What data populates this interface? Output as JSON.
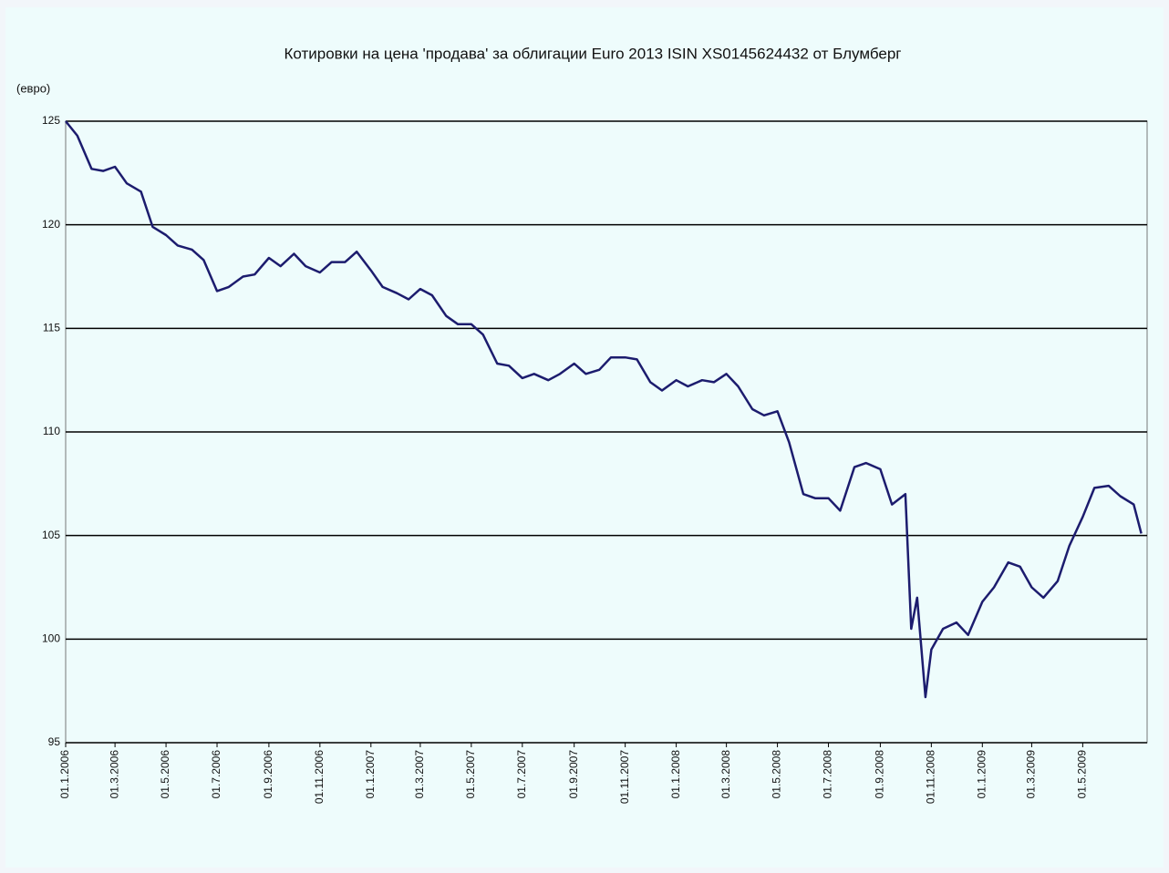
{
  "chart_data": {
    "type": "line",
    "title": "Котировки на цена 'продава' за облигации Euro 2013 ISIN XS0145624432 от  Блумберг",
    "y_label": "(евро)",
    "color": "#1c1c6e",
    "grid": true,
    "x": [
      "2006-01-01",
      "2006-01-15",
      "2006-02-01",
      "2006-02-15",
      "2006-03-01",
      "2006-03-15",
      "2006-04-01",
      "2006-04-15",
      "2006-05-01",
      "2006-05-15",
      "2006-06-01",
      "2006-06-15",
      "2006-07-01",
      "2006-07-15",
      "2006-08-01",
      "2006-08-15",
      "2006-09-01",
      "2006-09-15",
      "2006-10-01",
      "2006-10-15",
      "2006-11-01",
      "2006-11-15",
      "2006-12-01",
      "2006-12-15",
      "2007-01-01",
      "2007-01-15",
      "2007-02-01",
      "2007-02-15",
      "2007-03-01",
      "2007-03-15",
      "2007-04-01",
      "2007-04-15",
      "2007-05-01",
      "2007-05-15",
      "2007-06-01",
      "2007-06-15",
      "2007-07-01",
      "2007-07-15",
      "2007-08-01",
      "2007-08-15",
      "2007-09-01",
      "2007-09-15",
      "2007-10-01",
      "2007-10-15",
      "2007-11-01",
      "2007-11-15",
      "2007-12-01",
      "2007-12-15",
      "2008-01-01",
      "2008-01-15",
      "2008-02-01",
      "2008-02-15",
      "2008-03-01",
      "2008-03-15",
      "2008-04-01",
      "2008-04-15",
      "2008-05-01",
      "2008-05-15",
      "2008-06-01",
      "2008-06-15",
      "2008-07-01",
      "2008-07-15",
      "2008-08-01",
      "2008-08-15",
      "2008-09-01",
      "2008-09-15",
      "2008-10-01",
      "2008-10-08",
      "2008-10-15",
      "2008-10-25",
      "2008-11-01",
      "2008-11-15",
      "2008-12-01",
      "2008-12-15",
      "2009-01-01",
      "2009-01-15",
      "2009-02-01",
      "2009-02-15",
      "2009-03-01",
      "2009-03-15",
      "2009-04-01",
      "2009-04-15",
      "2009-05-01",
      "2009-05-15",
      "2009-06-01",
      "2009-06-15",
      "2009-07-01",
      "2009-07-10"
    ],
    "values": [
      125,
      124.3,
      122.7,
      122.6,
      122.8,
      122.0,
      121.6,
      119.9,
      119.5,
      119.0,
      118.8,
      118.3,
      116.8,
      117.0,
      117.5,
      117.6,
      118.4,
      118.0,
      118.6,
      118.0,
      117.7,
      118.2,
      118.2,
      118.7,
      117.8,
      117.0,
      116.7,
      116.4,
      116.9,
      116.6,
      115.6,
      115.2,
      115.2,
      114.7,
      113.3,
      113.2,
      112.6,
      112.8,
      112.5,
      112.8,
      113.3,
      112.8,
      113.0,
      113.6,
      113.6,
      113.5,
      112.4,
      112.0,
      112.5,
      112.2,
      112.5,
      112.4,
      112.8,
      112.2,
      111.1,
      110.8,
      111.0,
      109.5,
      107.0,
      106.8,
      106.8,
      106.2,
      108.3,
      108.5,
      108.2,
      106.5,
      107.0,
      100.5,
      102.0,
      97.2,
      99.5,
      100.5,
      100.8,
      100.2,
      101.8,
      102.5,
      103.7,
      103.5,
      102.5,
      102.0,
      102.8,
      104.5,
      105.9,
      107.3,
      107.4,
      106.9,
      106.5,
      105.1
    ],
    "xlim": [
      "2006-01-01",
      "2009-07-17"
    ],
    "xticks": [
      {
        "value": "2006-01-01",
        "label": "01.1.2006"
      },
      {
        "value": "2006-03-01",
        "label": "01.3.2006"
      },
      {
        "value": "2006-05-01",
        "label": "01.5.2006"
      },
      {
        "value": "2006-07-01",
        "label": "01.7.2006"
      },
      {
        "value": "2006-09-01",
        "label": "01.9.2006"
      },
      {
        "value": "2006-11-01",
        "label": "01.11.2006"
      },
      {
        "value": "2007-01-01",
        "label": "01.1.2007"
      },
      {
        "value": "2007-03-01",
        "label": "01.3.2007"
      },
      {
        "value": "2007-05-01",
        "label": "01.5.2007"
      },
      {
        "value": "2007-07-01",
        "label": "01.7.2007"
      },
      {
        "value": "2007-09-01",
        "label": "01.9.2007"
      },
      {
        "value": "2007-11-01",
        "label": "01.11.2007"
      },
      {
        "value": "2008-01-01",
        "label": "01.1.2008"
      },
      {
        "value": "2008-03-01",
        "label": "01.3.2008"
      },
      {
        "value": "2008-05-01",
        "label": "01.5.2008"
      },
      {
        "value": "2008-07-01",
        "label": "01.7.2008"
      },
      {
        "value": "2008-09-01",
        "label": "01.9.2008"
      },
      {
        "value": "2008-11-01",
        "label": "01.11.2008"
      },
      {
        "value": "2009-01-01",
        "label": "01.1.2009"
      },
      {
        "value": "2009-03-01",
        "label": "01.3.2009"
      },
      {
        "value": "2009-05-01",
        "label": "01.5.2009"
      }
    ],
    "ylim": [
      95,
      125
    ],
    "yticks": [
      95,
      100,
      105,
      110,
      115,
      120,
      125
    ]
  }
}
